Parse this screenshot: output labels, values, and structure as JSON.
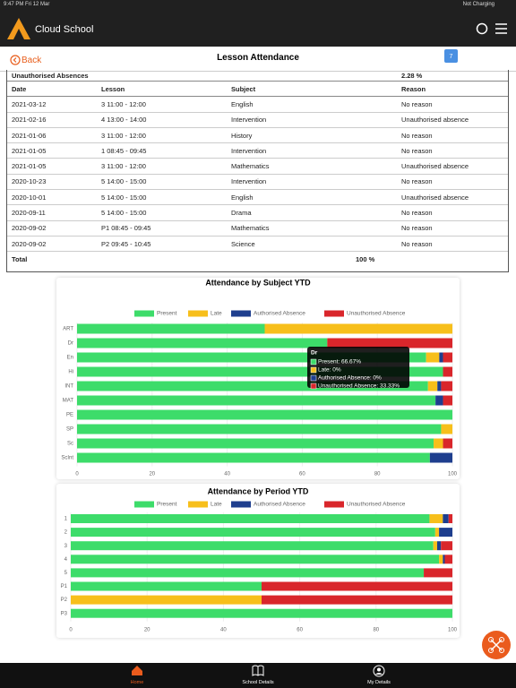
{
  "status": {
    "time": "9:47 PM  Fri 12 Mar",
    "battery": "Not Charging"
  },
  "header": {
    "app": "Cloud School"
  },
  "nav": {
    "back": "Back",
    "title": "Lesson Attendance",
    "calendar_day": "7"
  },
  "table": {
    "summary": [
      "Unauthorised Absences",
      "2.28 %"
    ],
    "columns": [
      "Date",
      "Lesson",
      "Subject",
      "Reason"
    ],
    "rows": [
      [
        "2021-03-12",
        "3 11:00 - 12:00",
        "English",
        "No reason"
      ],
      [
        "2021-02-16",
        "4 13:00 - 14:00",
        "Intervention",
        "Unauthorised absence"
      ],
      [
        "2021-01-06",
        "3 11:00 - 12:00",
        "History",
        "No reason"
      ],
      [
        "2021-01-05",
        "1 08:45 - 09:45",
        "Intervention",
        "No reason"
      ],
      [
        "2021-01-05",
        "3 11:00 - 12:00",
        "Mathematics",
        "Unauthorised absence"
      ],
      [
        "2020-10-23",
        "5 14:00 - 15:00",
        "Intervention",
        "No reason"
      ],
      [
        "2020-10-01",
        "5 14:00 - 15:00",
        "English",
        "Unauthorised absence"
      ],
      [
        "2020-09-11",
        "5 14:00 - 15:00",
        "Drama",
        "No reason"
      ],
      [
        "2020-09-02",
        "P1 08:45 - 09:45",
        "Mathematics",
        "No reason"
      ],
      [
        "2020-09-02",
        "P2 09:45 - 10:45",
        "Science",
        "No reason"
      ]
    ],
    "total": [
      "Total",
      "100 %"
    ]
  },
  "chart_data": [
    {
      "type": "stacked-bar",
      "title": "Attendance by Subject YTD",
      "categories": [
        "ART",
        "Dr",
        "En",
        "Hi",
        "INT",
        "MAT",
        "PE",
        "SP",
        "Sc",
        "ScInt"
      ],
      "series": [
        {
          "name": "Present",
          "color": "#3ddc6a",
          "values": [
            50,
            66.67,
            93,
            97.5,
            93.5,
            95.5,
            100,
            97,
            95,
            94
          ]
        },
        {
          "name": "Late",
          "color": "#f7bf1b",
          "values": [
            50,
            0,
            3.5,
            0,
            2.5,
            0,
            0,
            3,
            2.5,
            0
          ]
        },
        {
          "name": "Authorised Absence",
          "color": "#1e3e8e",
          "values": [
            0,
            0,
            1,
            0,
            1,
            2,
            0,
            0,
            0,
            6
          ]
        },
        {
          "name": "Unauthorised Absence",
          "color": "#d9262b",
          "values": [
            0,
            33.33,
            2.5,
            2.5,
            3,
            2.5,
            0,
            0,
            2.5,
            0
          ]
        }
      ],
      "xlim": [
        0,
        100
      ],
      "xticks": [
        0,
        20,
        40,
        60,
        80,
        100
      ],
      "grid": true,
      "legend": "top",
      "tooltip": {
        "title": "Dr",
        "lines": [
          "Present: 66.67%",
          "Late: 0%",
          "Authorised Absence: 0%",
          "Unauthorised Absence: 33.33%"
        ]
      }
    },
    {
      "type": "stacked-bar",
      "title": "Attendance by Period YTD",
      "categories": [
        "1",
        "2",
        "3",
        "4",
        "5",
        "P1",
        "P2",
        "P3"
      ],
      "series": [
        {
          "name": "Present",
          "color": "#3ddc6a",
          "values": [
            94,
            95.5,
            95,
            96.5,
            92.5,
            50,
            0,
            100
          ]
        },
        {
          "name": "Late",
          "color": "#f7bf1b",
          "values": [
            3.5,
            1,
            1,
            1,
            0,
            0,
            50,
            0
          ]
        },
        {
          "name": "Authorised Absence",
          "color": "#1e3e8e",
          "values": [
            1.5,
            3.5,
            1,
            0.5,
            0,
            0,
            0,
            0
          ]
        },
        {
          "name": "Unauthorised Absence",
          "color": "#d9262b",
          "values": [
            1,
            0,
            3,
            2,
            7.5,
            50,
            50,
            0
          ]
        }
      ],
      "xlim": [
        0,
        100
      ],
      "xticks": [
        0,
        20,
        40,
        60,
        80,
        100
      ],
      "grid": true,
      "legend": "top"
    }
  ],
  "tabs": [
    "Home",
    "School Details",
    "My Details"
  ]
}
